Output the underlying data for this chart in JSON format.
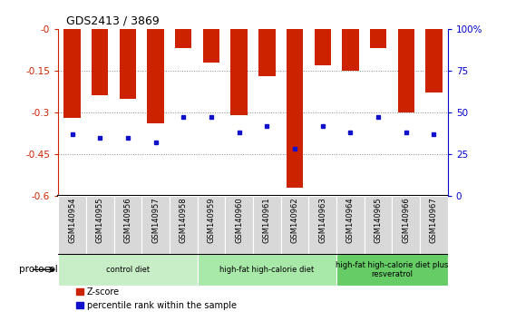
{
  "title": "GDS2413 / 3869",
  "samples": [
    "GSM140954",
    "GSM140955",
    "GSM140956",
    "GSM140957",
    "GSM140958",
    "GSM140959",
    "GSM140960",
    "GSM140961",
    "GSM140962",
    "GSM140963",
    "GSM140964",
    "GSM140965",
    "GSM140966",
    "GSM140967"
  ],
  "z_scores": [
    -0.32,
    -0.24,
    -0.25,
    -0.34,
    -0.07,
    -0.12,
    -0.31,
    -0.17,
    -0.57,
    -0.13,
    -0.15,
    -0.07,
    -0.3,
    -0.23
  ],
  "pct_ranks": [
    37,
    35,
    35,
    32,
    47,
    47,
    38,
    42,
    28,
    42,
    38,
    47,
    38,
    37
  ],
  "bar_color": "#cc2200",
  "dot_color": "#1111cc",
  "groups": [
    {
      "label": "control diet",
      "start": 0,
      "end": 5,
      "color": "#c8eec8"
    },
    {
      "label": "high-fat high-calorie diet",
      "start": 5,
      "end": 10,
      "color": "#a8e8a8"
    },
    {
      "label": "high-fat high-calorie diet plus\nresveratrol",
      "start": 10,
      "end": 14,
      "color": "#66cc66"
    }
  ],
  "ylim_left": [
    -0.6,
    0.0
  ],
  "ylim_right": [
    0,
    100
  ],
  "yticks_left": [
    -0.6,
    -0.45,
    -0.3,
    -0.15,
    0.0
  ],
  "ytick_labels_left": [
    "-0.6",
    "-0.45",
    "-0.3",
    "-0.15",
    "-0"
  ],
  "yticks_right": [
    0,
    25,
    50,
    75,
    100
  ],
  "ytick_labels_right": [
    "0",
    "25",
    "50",
    "75",
    "100%"
  ],
  "grid_yticks": [
    -0.45,
    -0.3,
    -0.15
  ],
  "grid_color": "#888888",
  "bg_color": "#ffffff",
  "xtick_bg_color": "#d8d8d8",
  "protocol_label": "protocol",
  "legend_zscore": "Z-score",
  "legend_pct": "percentile rank within the sample"
}
